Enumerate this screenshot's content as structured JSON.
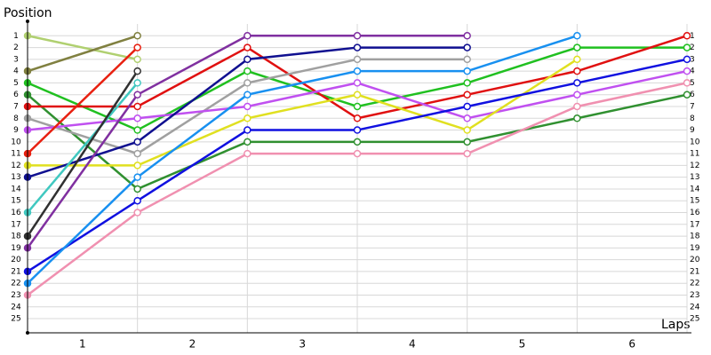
{
  "chart_data": {
    "type": "line",
    "y_label": "Position",
    "x_label": "Laps",
    "x": [
      0,
      1,
      2,
      3,
      4,
      5,
      6
    ],
    "xlim": [
      0,
      6
    ],
    "xticks": [
      {
        "value": 0.5,
        "label": "1"
      },
      {
        "value": 1.5,
        "label": "2"
      },
      {
        "value": 2.5,
        "label": "3"
      },
      {
        "value": 3.5,
        "label": "4"
      },
      {
        "value": 4.5,
        "label": "5"
      },
      {
        "value": 5.5,
        "label": "6"
      }
    ],
    "ylim": [
      0,
      26.2
    ],
    "y_inverted": true,
    "grid": true,
    "yticks": [
      1,
      2,
      3,
      4,
      5,
      6,
      7,
      8,
      9,
      10,
      11,
      12,
      13,
      14,
      15,
      16,
      17,
      18,
      19,
      20,
      21,
      22,
      23,
      24,
      25
    ],
    "series": [
      {
        "color": "#b0d070",
        "values": [
          1,
          3,
          null,
          null,
          null,
          null,
          null
        ]
      },
      {
        "color": "#808040",
        "values": [
          4,
          1,
          null,
          null,
          null,
          null,
          null
        ]
      },
      {
        "color": "#20c020",
        "values": [
          5,
          9,
          4,
          7,
          5,
          2,
          2
        ]
      },
      {
        "color": "#309030",
        "values": [
          6,
          14,
          10,
          10,
          10,
          8,
          6
        ]
      },
      {
        "color": "#e01010",
        "values": [
          7,
          7,
          2,
          8,
          6,
          4,
          1
        ]
      },
      {
        "color": "#a0a0a0",
        "values": [
          8,
          11,
          5,
          3,
          3,
          null,
          null
        ]
      },
      {
        "color": "#c050f0",
        "values": [
          9,
          8,
          7,
          5,
          8,
          6,
          4
        ]
      },
      {
        "color": "#e82010",
        "values": [
          11,
          2,
          null,
          null,
          null,
          null,
          null
        ]
      },
      {
        "color": "#e0e020",
        "values": [
          12,
          12,
          8,
          6,
          9,
          3,
          null
        ]
      },
      {
        "color": "#101090",
        "values": [
          13,
          10,
          3,
          2,
          2,
          null,
          null
        ]
      },
      {
        "color": "#40c8c0",
        "values": [
          16,
          5,
          null,
          null,
          null,
          null,
          null
        ]
      },
      {
        "color": "#303030",
        "values": [
          18,
          4,
          null,
          null,
          null,
          null,
          null
        ]
      },
      {
        "color": "#8030a0",
        "values": [
          19,
          6,
          1,
          1,
          1,
          null,
          null
        ]
      },
      {
        "color": "#1010e0",
        "values": [
          21,
          15,
          9,
          9,
          7,
          5,
          3
        ]
      },
      {
        "color": "#1890f0",
        "values": [
          22,
          13,
          6,
          4,
          4,
          1,
          null
        ]
      },
      {
        "color": "#f090b0",
        "values": [
          23,
          16,
          11,
          11,
          11,
          7,
          5
        ]
      }
    ]
  }
}
